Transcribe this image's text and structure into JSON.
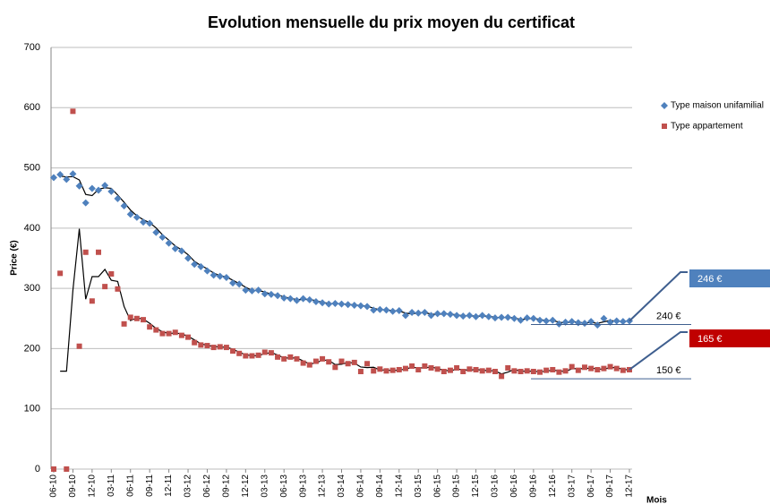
{
  "chart_data": {
    "type": "scatter",
    "title": "Evolution mensuelle du prix moyen du certificat",
    "y_label": "Price (€)",
    "x_label": "Mois",
    "categories": [
      "06-10",
      null,
      null,
      "09-10",
      null,
      null,
      "12-10",
      null,
      null,
      "03-11",
      null,
      null,
      "06-11",
      null,
      null,
      "09-11",
      null,
      null,
      "12-11",
      null,
      null,
      "03-12",
      null,
      null,
      "06-12",
      null,
      null,
      "09-12",
      null,
      null,
      "12-12",
      null,
      null,
      "03-13",
      null,
      null,
      "06-13",
      null,
      null,
      "09-13",
      null,
      null,
      "12-13",
      null,
      null,
      "03-14",
      null,
      null,
      "06-14",
      null,
      null,
      "09-14",
      null,
      null,
      "12-14",
      null,
      null,
      "03-15",
      null,
      null,
      "06-15",
      null,
      null,
      "09-15",
      null,
      null,
      "12-15",
      null,
      null,
      "03-16",
      null,
      null,
      "06-16",
      null,
      null,
      "09-16",
      null,
      null,
      "12-16",
      null,
      null,
      "03-17",
      null,
      null,
      "06-17",
      null,
      null,
      "09-17",
      null,
      null,
      "12-17"
    ],
    "series": [
      {
        "name": "Type maison unifamilial",
        "color": "#4f81bd",
        "marker": "diamond",
        "values": [
          484,
          489,
          481,
          490,
          470,
          442,
          466,
          463,
          471,
          461,
          449,
          437,
          423,
          418,
          410,
          408,
          393,
          385,
          375,
          366,
          362,
          350,
          340,
          336,
          329,
          322,
          320,
          318,
          309,
          307,
          297,
          296,
          297,
          291,
          290,
          288,
          284,
          283,
          280,
          283,
          281,
          278,
          276,
          274,
          275,
          274,
          273,
          272,
          271,
          270,
          264,
          265,
          264,
          262,
          263,
          255,
          260,
          259,
          260,
          255,
          258,
          258,
          257,
          255,
          254,
          255,
          253,
          255,
          253,
          251,
          252,
          252,
          250,
          247,
          251,
          250,
          247,
          246,
          247,
          241,
          244,
          245,
          243,
          242,
          245,
          239,
          250,
          244,
          246,
          245,
          246
        ]
      },
      {
        "name": "Type appartement",
        "color": "#c0504d",
        "marker": "square",
        "values": [
          0,
          325,
          0,
          594,
          204,
          360,
          279,
          360,
          303,
          324,
          299,
          241,
          252,
          250,
          248,
          236,
          231,
          225,
          225,
          227,
          222,
          219,
          210,
          206,
          205,
          202,
          203,
          202,
          196,
          192,
          188,
          188,
          189,
          194,
          193,
          186,
          183,
          186,
          183,
          176,
          173,
          179,
          183,
          178,
          169,
          179,
          175,
          177,
          162,
          175,
          163,
          166,
          163,
          164,
          165,
          167,
          171,
          165,
          171,
          168,
          166,
          162,
          164,
          168,
          162,
          166,
          165,
          163,
          164,
          162,
          154,
          168,
          163,
          162,
          163,
          162,
          161,
          164,
          165,
          161,
          163,
          170,
          164,
          169,
          167,
          165,
          167,
          170,
          167,
          164,
          165
        ]
      }
    ],
    "trendline": {
      "type": "moving_average",
      "period": 2,
      "color": "#000000"
    },
    "ylim": [
      0,
      700
    ],
    "yticks": [
      0,
      100,
      200,
      300,
      400,
      500,
      600,
      700
    ],
    "grid": true,
    "legend": "right",
    "annotations": [
      {
        "value": 240,
        "label": "240 €"
      },
      {
        "value": 150,
        "label": "150 €"
      },
      {
        "value": 246,
        "label": "246 €",
        "color": "#4f81bd",
        "series": 0
      },
      {
        "value": 165,
        "label": "165 €",
        "color": "#c00000",
        "series": 1
      }
    ]
  }
}
